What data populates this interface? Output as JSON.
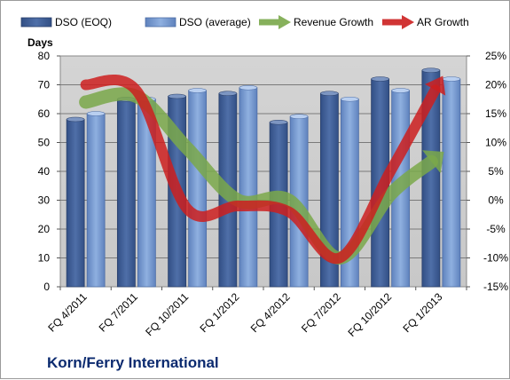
{
  "chart_data": {
    "type": "bar",
    "categories": [
      "FQ 4/2011",
      "FQ 7/2011",
      "FQ 10/2011",
      "FQ 1/2012",
      "FQ 4/2012",
      "FQ 7/2012",
      "FQ 10/2012",
      "FQ 1/2013"
    ],
    "series": [
      {
        "name": "DSO (EOQ)",
        "type": "bar",
        "axis": "left",
        "color": "#4f6fa8",
        "values": [
          58,
          65,
          66,
          67,
          57,
          67,
          72,
          75
        ]
      },
      {
        "name": "DSO (average)",
        "type": "bar",
        "axis": "left",
        "color": "#8fb0e0",
        "values": [
          60,
          65,
          68,
          69,
          59,
          65,
          68,
          72
        ]
      },
      {
        "name": "Revenue Growth",
        "type": "line-arrow",
        "axis": "right",
        "color": "#7aa84a",
        "values": [
          17,
          18,
          9,
          0,
          0,
          -10,
          1,
          8
        ]
      },
      {
        "name": "AR Growth",
        "type": "line-arrow",
        "axis": "right",
        "color": "#cc1f1f",
        "values": [
          20,
          19,
          -1.5,
          -1,
          -2,
          -10,
          5,
          21
        ]
      }
    ],
    "ylabel": "Days",
    "ylim": [
      0,
      80
    ],
    "yticks": [
      "0",
      "10",
      "20",
      "30",
      "40",
      "50",
      "60",
      "70",
      "80"
    ],
    "y2lim": [
      -15,
      25
    ],
    "y2ticks": [
      "-15%",
      "-10%",
      "-5%",
      "0%",
      "5%",
      "10%",
      "15%",
      "20%",
      "25%"
    ],
    "grid": true,
    "legend": "top",
    "plot_background": "#c8c8c8",
    "title": ""
  },
  "footer": {
    "company": "Korn/Ferry International"
  }
}
